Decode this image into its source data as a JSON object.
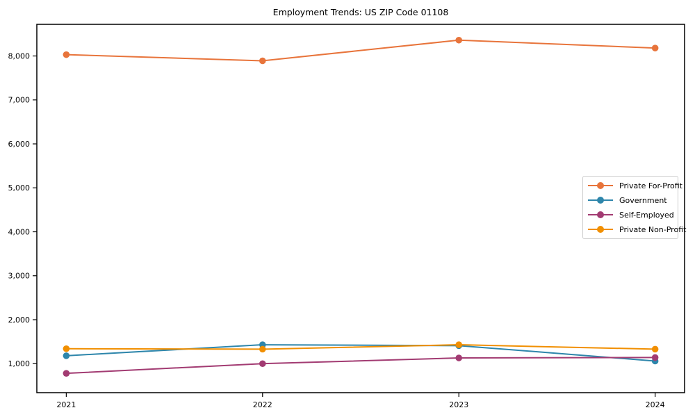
{
  "chart_data": {
    "type": "line",
    "title": "Employment Trends: US ZIP Code 01108",
    "x": [
      2021,
      2022,
      2023,
      2024
    ],
    "series": [
      {
        "name": "Private For-Profit",
        "color": "#E8743B",
        "values": [
          8030,
          7890,
          8360,
          8180
        ]
      },
      {
        "name": "Government",
        "color": "#2E86AB",
        "values": [
          1180,
          1430,
          1410,
          1060
        ]
      },
      {
        "name": "Self-Employed",
        "color": "#A23B72",
        "values": [
          780,
          1000,
          1130,
          1140
        ]
      },
      {
        "name": "Private Non-Profit",
        "color": "#F18F01",
        "values": [
          1340,
          1330,
          1430,
          1330
        ]
      }
    ],
    "xlabel": "",
    "ylabel": "",
    "xticks": [
      2021,
      2022,
      2023,
      2024
    ],
    "xtick_labels": [
      "2021",
      "2022",
      "2023",
      "2024"
    ],
    "yticks": [
      1000,
      2000,
      3000,
      4000,
      5000,
      6000,
      7000,
      8000
    ],
    "ytick_labels": [
      "1,000",
      "2,000",
      "3,000",
      "4,000",
      "5,000",
      "6,000",
      "7,000",
      "8,000"
    ],
    "xlim": [
      2020.85,
      2024.15
    ],
    "ylim": [
      340,
      8720
    ],
    "grid": false,
    "legend_position": "center-right",
    "axis_color": "#000000",
    "background": "#ffffff"
  }
}
